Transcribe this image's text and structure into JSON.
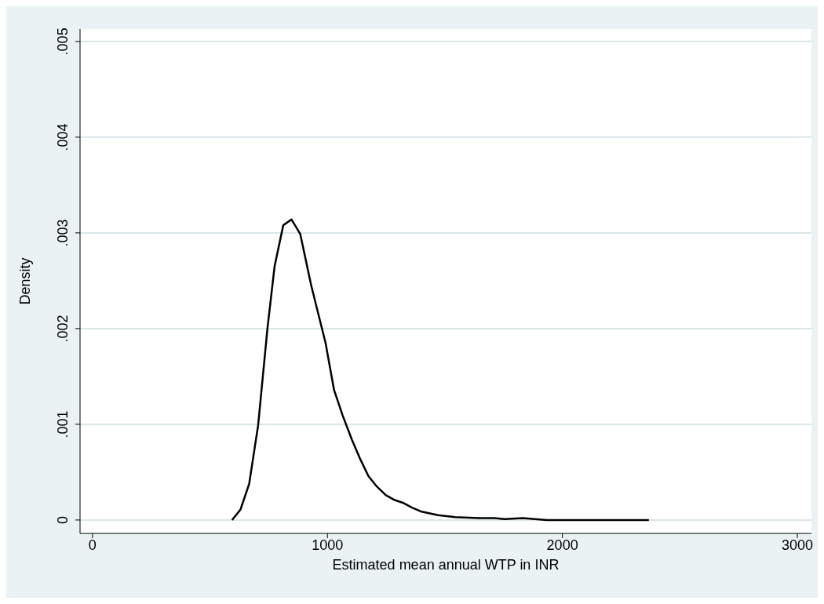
{
  "chart_data": {
    "type": "line",
    "xlabel": "Estimated mean annual WTP in INR",
    "ylabel": "Density",
    "x": [
      594,
      630,
      667,
      705,
      745,
      775,
      812,
      847,
      884,
      931,
      992,
      1028,
      1065,
      1104,
      1137,
      1174,
      1210,
      1248,
      1285,
      1321,
      1360,
      1397,
      1471,
      1544,
      1644,
      1711,
      1754,
      1832,
      1933,
      2050,
      2200,
      2368
    ],
    "series": [
      {
        "color": "#000000",
        "values": [
          0,
          0.00011,
          0.00038,
          0.00099,
          0.00201,
          0.00265,
          0.00308,
          0.00314,
          0.00299,
          0.00245,
          0.00185,
          0.00136,
          0.00109,
          0.00084,
          0.00065,
          0.00046,
          0.00035,
          0.00026,
          0.00021,
          0.00018,
          0.00013,
          9e-05,
          5e-05,
          3e-05,
          2e-05,
          2e-05,
          1e-05,
          2e-05,
          0,
          0,
          0,
          0
        ]
      }
    ],
    "xlim": [
      -53,
      3060
    ],
    "xticks": [
      0,
      1000,
      2000,
      3000
    ],
    "ylim": [
      -0.00014,
      0.00513
    ],
    "yticks": [
      {
        "value": 0,
        "label": "0"
      },
      {
        "value": 0.001,
        "label": ".001"
      },
      {
        "value": 0.002,
        "label": ".002"
      },
      {
        "value": 0.003,
        "label": ".003"
      },
      {
        "value": 0.004,
        "label": ".004"
      },
      {
        "value": 0.005,
        "label": ".005"
      }
    ],
    "grid": "y",
    "legend": false,
    "marker": "none",
    "line_style": "solid"
  }
}
